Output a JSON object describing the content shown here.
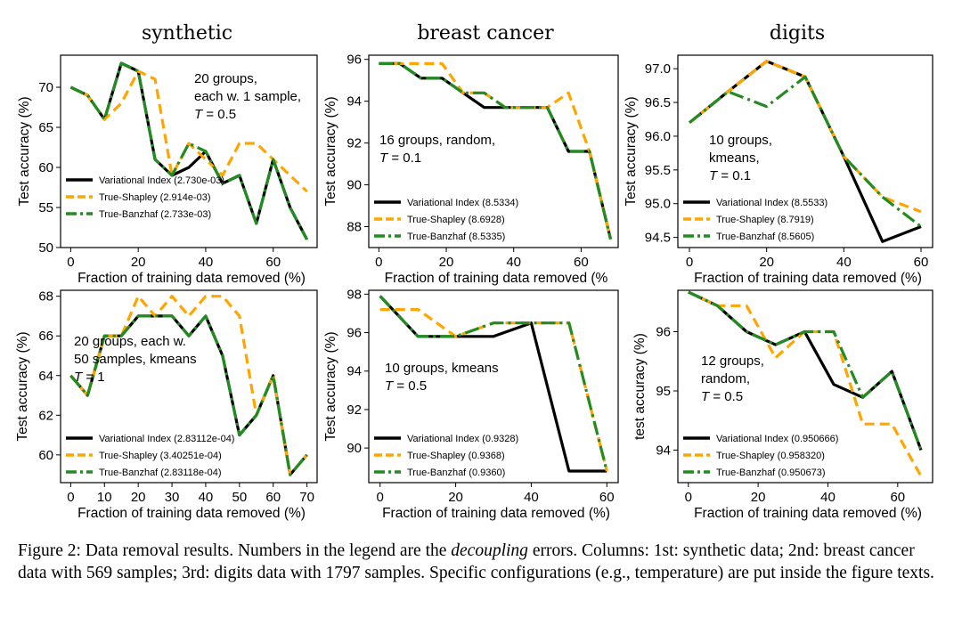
{
  "column_titles": [
    "synthetic",
    "breast cancer",
    "digits"
  ],
  "caption": {
    "prefix": "Figure 2: Data removal results. Numbers in the legend are the",
    "emphasis": "decoupling",
    "suffix": "errors. Columns: 1st: synthetic data; 2nd: breast cancer data with 569 samples; 3rd: digits data with 1797 samples. Specific configurations (e.g., temperature) are put inside the figure texts."
  },
  "colors": {
    "variational": "#000000",
    "shapley": "#FFA500",
    "banzhaf": "#228B22"
  },
  "chart_data": [
    {
      "type": "line",
      "xlabel": "Fraction of training data removed (%)",
      "ylabel": "Test accuracy (%)",
      "xlim": [
        -3,
        73
      ],
      "ylim": [
        50,
        74
      ],
      "xticks": [
        0,
        20,
        40,
        60
      ],
      "xtick_labels": [
        "0",
        "20",
        "40",
        "60"
      ],
      "yticks": [
        50,
        55,
        60,
        65,
        70
      ],
      "ytick_labels": [
        "50",
        "55",
        "60",
        "65",
        "70"
      ],
      "annotation": [
        "20 groups,",
        "each w. 1 sample,",
        "T = 0.5"
      ],
      "x": [
        0,
        5,
        10,
        15,
        20,
        25,
        30,
        35,
        40,
        45,
        50,
        55,
        60,
        65,
        70
      ],
      "series": [
        {
          "name": "Variational Index (2.730e-03)",
          "values": [
            70,
            69,
            66,
            73,
            72,
            61,
            59,
            60,
            62,
            58,
            59,
            53,
            61,
            55,
            51
          ]
        },
        {
          "name": "True-Shapley (2.914e-03)",
          "values": [
            70,
            69,
            66,
            68,
            72,
            71,
            59,
            63,
            61,
            59,
            63,
            63,
            61,
            59,
            57
          ]
        },
        {
          "name": "True-Banzhaf (2.733e-03)",
          "values": [
            70,
            69,
            66,
            73,
            72,
            61,
            59,
            63,
            62,
            58,
            59,
            53,
            61,
            55,
            51
          ]
        }
      ]
    },
    {
      "type": "line",
      "xlabel": "Fraction of training data removed (%",
      "ylabel": "Test accuracy (%)",
      "xlim": [
        -3,
        71
      ],
      "ylim": [
        87,
        96.2
      ],
      "xticks": [
        0,
        20,
        40,
        60
      ],
      "xtick_labels": [
        "0",
        "20",
        "40",
        "60"
      ],
      "yticks": [
        88,
        90,
        92,
        94,
        96
      ],
      "ytick_labels": [
        "88",
        "90",
        "92",
        "94",
        "96"
      ],
      "annotation": [
        "16 groups, random,",
        "T = 0.1"
      ],
      "x": [
        0,
        6.25,
        12.5,
        18.75,
        25,
        31.25,
        37.5,
        43.75,
        50,
        56.25,
        62.5,
        68.75
      ],
      "series": [
        {
          "name": "Variational Index (8.5334)",
          "values": [
            95.8,
            95.8,
            95.1,
            95.1,
            94.4,
            93.7,
            93.7,
            93.7,
            93.7,
            91.6,
            91.6,
            87.4
          ]
        },
        {
          "name": "True-Shapley (8.6928)",
          "values": [
            95.8,
            95.8,
            95.8,
            95.8,
            94.4,
            94.4,
            93.7,
            93.7,
            93.7,
            94.4,
            91.6,
            87.4
          ]
        },
        {
          "name": "True-Banzhaf (8.5335)",
          "values": [
            95.8,
            95.8,
            95.1,
            95.1,
            94.4,
            94.4,
            93.7,
            93.7,
            93.7,
            91.6,
            91.6,
            87.4
          ]
        }
      ]
    },
    {
      "type": "line",
      "xlabel": "Fraction of training data removed (%)",
      "ylabel": "Test accuracy (%)",
      "xlim": [
        -3,
        63
      ],
      "ylim": [
        94.35,
        97.2
      ],
      "xticks": [
        0,
        20,
        40,
        60
      ],
      "xtick_labels": [
        "0",
        "20",
        "40",
        "60"
      ],
      "yticks": [
        94.5,
        95.0,
        95.5,
        96.0,
        96.5,
        97.0
      ],
      "ytick_labels": [
        "94.5",
        "95.0",
        "95.5",
        "96.0",
        "96.5",
        "97.0"
      ],
      "annotation": [
        "10 groups,",
        "kmeans,",
        "T = 0.1"
      ],
      "x": [
        0,
        10,
        20,
        30,
        40,
        50,
        60
      ],
      "series": [
        {
          "name": "Variational Index (8.5533)",
          "values": [
            96.2,
            96.66,
            97.11,
            96.88,
            95.7,
            94.44,
            94.66
          ]
        },
        {
          "name": "True-Shapley (8.7919)",
          "values": [
            96.2,
            96.66,
            97.11,
            96.88,
            95.7,
            95.1,
            94.88
          ]
        },
        {
          "name": "True-Banzhaf (8.5605)",
          "values": [
            96.2,
            96.66,
            96.44,
            96.88,
            95.7,
            95.1,
            94.66
          ]
        }
      ]
    },
    {
      "type": "line",
      "xlabel": "Fraction of training data removed (%)",
      "ylabel": "Test accuracy (%)",
      "xlim": [
        -3,
        73
      ],
      "ylim": [
        58.6,
        68.3
      ],
      "xticks": [
        0,
        10,
        20,
        30,
        40,
        50,
        60,
        70
      ],
      "xtick_labels": [
        "0",
        "10",
        "20",
        "30",
        "40",
        "50",
        "60",
        "70"
      ],
      "yticks": [
        60,
        62,
        64,
        66,
        68
      ],
      "ytick_labels": [
        "60",
        "62",
        "64",
        "66",
        "68"
      ],
      "annotation": [
        "20 groups, each w.",
        "50 samples, kmeans",
        "T = 1"
      ],
      "x": [
        0,
        5,
        10,
        15,
        20,
        25,
        30,
        35,
        40,
        45,
        50,
        55,
        60,
        65,
        70
      ],
      "series": [
        {
          "name": "Variational Index (2.83112e-04)",
          "values": [
            64,
            63,
            66,
            66,
            67,
            67,
            67,
            66,
            67,
            65,
            61,
            62,
            64,
            59,
            60
          ]
        },
        {
          "name": "True-Shapley (3.40251e-04)",
          "values": [
            64,
            63,
            66,
            66,
            68,
            67,
            68,
            67,
            68,
            68,
            67,
            62,
            64,
            59,
            60
          ]
        },
        {
          "name": "True-Banzhaf (2.83118e-04)",
          "values": [
            64,
            63,
            66,
            66,
            67,
            67,
            67,
            66,
            67,
            65,
            61,
            62,
            64,
            59,
            60
          ]
        }
      ]
    },
    {
      "type": "line",
      "xlabel": "Fraction of training data removed (%)",
      "ylabel": "Test accuracy (%)",
      "xlim": [
        -3,
        63
      ],
      "ylim": [
        88.2,
        98.2
      ],
      "xticks": [
        0,
        20,
        40,
        60
      ],
      "xtick_labels": [
        "0",
        "20",
        "40",
        "60"
      ],
      "yticks": [
        90,
        92,
        94,
        96,
        98
      ],
      "ytick_labels": [
        "90",
        "92",
        "94",
        "96",
        "98"
      ],
      "annotation": [
        "10 groups, kmeans",
        "T = 0.5"
      ],
      "x": [
        0,
        10,
        20,
        30,
        40,
        50,
        60
      ],
      "series": [
        {
          "name": "Variational Index (0.9328)",
          "values": [
            97.9,
            95.8,
            95.8,
            95.8,
            96.5,
            88.8,
            88.8
          ]
        },
        {
          "name": "True-Shapley (0.9368)",
          "values": [
            97.2,
            97.2,
            95.8,
            96.5,
            96.5,
            96.5,
            88.8
          ]
        },
        {
          "name": "True-Banzhaf (0.9360)",
          "values": [
            97.9,
            95.8,
            95.8,
            96.5,
            96.5,
            96.5,
            88.8
          ]
        }
      ]
    },
    {
      "type": "line",
      "xlabel": "Fraction of training data removed (%)",
      "ylabel": "test accuracy (%)",
      "xlim": [
        -3,
        70
      ],
      "ylim": [
        93.45,
        96.7
      ],
      "xticks": [
        0,
        20,
        40,
        60
      ],
      "xtick_labels": [
        "0",
        "20",
        "40",
        "60"
      ],
      "yticks": [
        94,
        95,
        96
      ],
      "ytick_labels": [
        "94",
        "95",
        "96"
      ],
      "annotation": [
        "12 groups,",
        "random,",
        "T = 0.5"
      ],
      "x": [
        0,
        8.33,
        16.67,
        25,
        33.33,
        41.67,
        50,
        58.33,
        66.67
      ],
      "series": [
        {
          "name": "Variational Index (0.950666)",
          "values": [
            96.67,
            96.44,
            96.0,
            95.78,
            96.0,
            95.11,
            94.89,
            95.33,
            94.0
          ]
        },
        {
          "name": "True-Shapley (0.958320)",
          "values": [
            96.67,
            96.44,
            96.44,
            95.56,
            96.0,
            96.0,
            94.44,
            94.44,
            93.56
          ]
        },
        {
          "name": "True-Banzhaf (0.950673)",
          "values": [
            96.67,
            96.44,
            96.0,
            95.78,
            96.0,
            96.0,
            94.89,
            95.33,
            94.0
          ]
        }
      ]
    }
  ]
}
